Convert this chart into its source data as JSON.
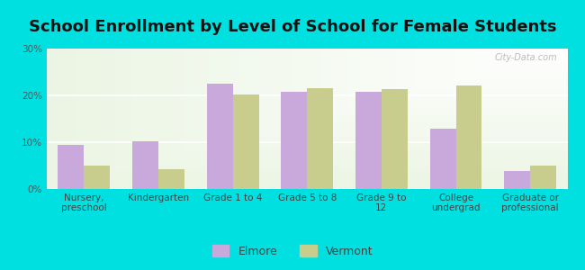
{
  "title": "School Enrollment by Level of School for Female Students",
  "categories": [
    "Nursery,\npreschool",
    "Kindergarten",
    "Grade 1 to 4",
    "Grade 5 to 8",
    "Grade 9 to\n12",
    "College\nundergrad",
    "Graduate or\nprofessional"
  ],
  "elmore_values": [
    9.5,
    10.2,
    22.5,
    20.8,
    20.8,
    12.8,
    3.8
  ],
  "vermont_values": [
    5.0,
    4.2,
    20.2,
    21.5,
    21.3,
    22.2,
    5.0
  ],
  "elmore_color": "#c9a8dc",
  "vermont_color": "#c8cc8c",
  "background_color": "#00e0e0",
  "ylim": [
    0,
    30
  ],
  "yticks": [
    0,
    10,
    20,
    30
  ],
  "ytick_labels": [
    "0%",
    "10%",
    "20%",
    "30%"
  ],
  "bar_width": 0.35,
  "title_fontsize": 13,
  "tick_fontsize": 7.5,
  "legend_fontsize": 9,
  "watermark": "City-Data.com"
}
